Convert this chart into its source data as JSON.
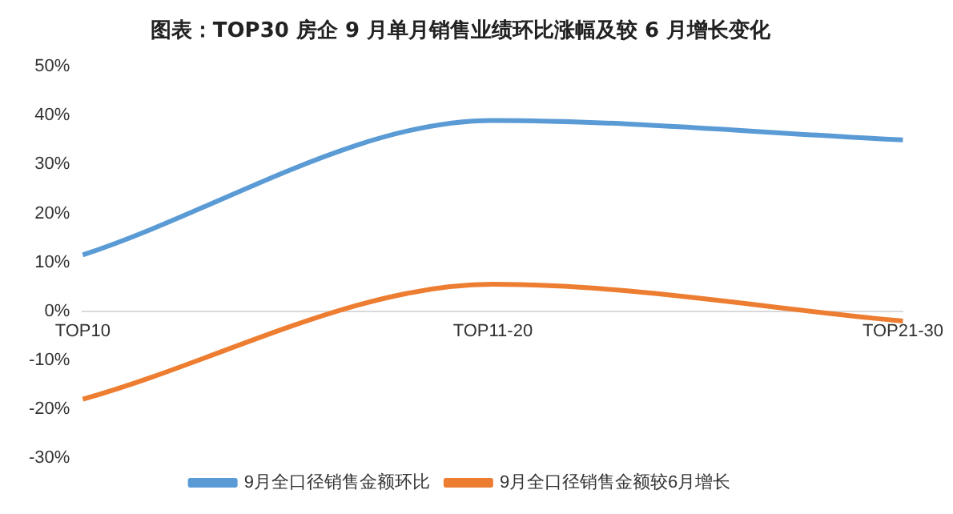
{
  "chart_data": {
    "type": "line",
    "title": "图表：TOP30 房企 9 月单月销售业绩环比涨幅及较 6 月增长变化",
    "categories": [
      "TOP10",
      "TOP11-20",
      "TOP21-30"
    ],
    "series": [
      {
        "name": "9月全口径销售金额环比",
        "color": "#5b9bd5",
        "values": [
          11.5,
          39,
          35
        ]
      },
      {
        "name": "9月全口径销售金额较6月增长",
        "color": "#ed7d31",
        "values": [
          -18,
          5.5,
          -2
        ]
      }
    ],
    "ylim": [
      -30,
      50
    ],
    "yticks": [
      {
        "value": -30,
        "label": "-30%"
      },
      {
        "value": -20,
        "label": "-20%"
      },
      {
        "value": -10,
        "label": "-10%"
      },
      {
        "value": 0,
        "label": "0%"
      },
      {
        "value": 10,
        "label": "10%"
      },
      {
        "value": 20,
        "label": "20%"
      },
      {
        "value": 30,
        "label": "30%"
      },
      {
        "value": 40,
        "label": "40%"
      },
      {
        "value": 50,
        "label": "50%"
      }
    ],
    "grid": false,
    "legend": "bottom",
    "marker": "none",
    "line_style": "solid"
  }
}
